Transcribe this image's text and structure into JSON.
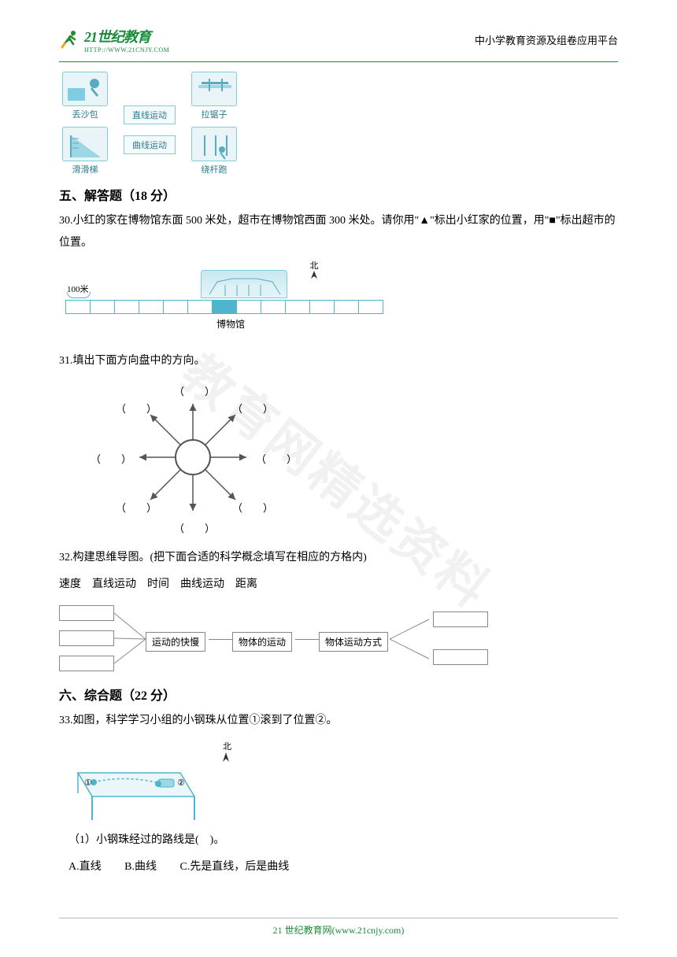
{
  "header": {
    "logo_main": "21世纪教育",
    "logo_url": "HTTP://WWW.21CNJY.COM",
    "right_text": "中小学教育资源及组卷应用平台"
  },
  "watermark": "教育网精选资料",
  "activity_matching": {
    "left_col": [
      {
        "label": "丢沙包"
      },
      {
        "label": "滑滑梯"
      }
    ],
    "motion_options": [
      "直线运动",
      "曲线运动"
    ],
    "right_col": [
      {
        "label": "拉锯子"
      },
      {
        "label": "绕杆跑"
      }
    ]
  },
  "section5": {
    "heading": "五、解答题（18 分）",
    "q30": {
      "text": "30.小红的家在博物馆东面 500 米处，超市在博物馆西面 300 米处。请你用\"▲\"标出小红家的位置，用\"■\"标出超市的位置。",
      "north_char": "北",
      "scale_label": "100米",
      "museum_label": "博物馆",
      "ruler_cells": 13,
      "museum_cell_index": 6,
      "colors": {
        "line": "#4db6cc",
        "fill": "#4db6cc",
        "bg": "#e8f4f8"
      }
    },
    "q31": {
      "text": "31.填出下面方向盘中的方向。",
      "paren_l": "（",
      "paren_r": "）",
      "colors": {
        "line": "#555555",
        "fill": "#707070"
      }
    },
    "q32": {
      "text": "32.构建思维导图。(把下面合适的科学概念填写在相应的方格内)",
      "terms": "速度　直线运动　时间　曲线运动　距离",
      "boxes": {
        "kuaiman": "运动的快慢",
        "wuti": "物体的运动",
        "fangshi": "物体运动方式"
      }
    }
  },
  "section6": {
    "heading": "六、综合题（22 分）",
    "q33": {
      "text": "33.如图，科学学习小组的小钢珠从位置①滚到了位置②。",
      "north_char": "北",
      "pos1": "①",
      "pos2": "②",
      "sub1": "（1）小钢珠经过的路线是(　)。",
      "options": {
        "A": "A.直线",
        "B": "B.曲线",
        "C": "C.先是直线，后是曲线"
      }
    }
  },
  "footer": "21 世纪教育网(www.21cnjy.com)"
}
